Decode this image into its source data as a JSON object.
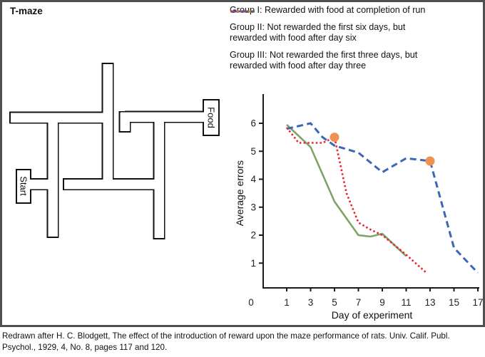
{
  "figure": {
    "panel_title": "T-maze",
    "maze": {
      "start_label": "Start",
      "food_label": "Food"
    },
    "legend": [
      {
        "label": "Group I: Rewarded with food at completion of run",
        "color": "#7ea567",
        "dash": "",
        "width": 2.6
      },
      {
        "label": "Group II: Not rewarded the first six days, but rewarded with food after day six",
        "color": "#3b67b5",
        "dash": "9 5.5",
        "width": 3
      },
      {
        "label": "Group III: Not rewarded the first three days, but rewarded with food after day three",
        "color": "#e8232d",
        "dash": "2.5 3.2",
        "width": 2.6
      }
    ],
    "chart_data": {
      "type": "line",
      "title": "",
      "xlabel": "Day of experiment",
      "ylabel": "Average errors",
      "origin_label": "0",
      "x_ticks": [
        1,
        3,
        5,
        7,
        9,
        11,
        13,
        15,
        17
      ],
      "y_ticks": [
        1,
        2,
        3,
        4,
        5,
        6
      ],
      "xlim": [
        0,
        17.5
      ],
      "ylim": [
        0,
        6.8
      ],
      "grid": false,
      "legend_position": "top-right",
      "series": [
        {
          "name": "Group I",
          "color": "#7ea567",
          "dash": "",
          "width": 2.6,
          "points": [
            [
              1,
              5.95
            ],
            [
              3,
              5.15
            ],
            [
              5,
              3.2
            ],
            [
              7,
              2.0
            ],
            [
              8,
              1.95
            ],
            [
              9,
              2.05
            ],
            [
              11,
              1.25
            ]
          ]
        },
        {
          "name": "Group II",
          "color": "#3b67b5",
          "dash": "9 5.5",
          "width": 3,
          "points": [
            [
              1,
              5.8
            ],
            [
              3,
              6.0
            ],
            [
              4,
              5.5
            ],
            [
              5,
              5.2
            ],
            [
              7,
              4.95
            ],
            [
              9,
              4.25
            ],
            [
              11,
              4.75
            ],
            [
              13,
              4.65
            ],
            [
              15,
              1.55
            ],
            [
              17,
              0.65
            ]
          ]
        },
        {
          "name": "Group III",
          "color": "#e8232d",
          "dash": "2.5 3.2",
          "width": 2.6,
          "points": [
            [
              1,
              5.85
            ],
            [
              2,
              5.3
            ],
            [
              4,
              5.3
            ],
            [
              5,
              5.5
            ],
            [
              6,
              3.5
            ],
            [
              7,
              2.45
            ],
            [
              8,
              2.2
            ],
            [
              9,
              2.0
            ],
            [
              11,
              1.3
            ],
            [
              12.7,
              0.65
            ]
          ]
        }
      ],
      "markers": [
        {
          "x": 5,
          "y": 5.5,
          "color": "#f09254",
          "on_series": "Group III"
        },
        {
          "x": 13,
          "y": 4.65,
          "color": "#f09254",
          "on_series": "Group II"
        }
      ]
    },
    "caption": {
      "line1": "Redrawn after H. C. Blodgett, The effect of the introduction of reward upon the maze performance of rats. Univ. Calif. Publ.",
      "line2": "Psychol., 1929, 4, No. 8, pages 117 and 120."
    }
  }
}
